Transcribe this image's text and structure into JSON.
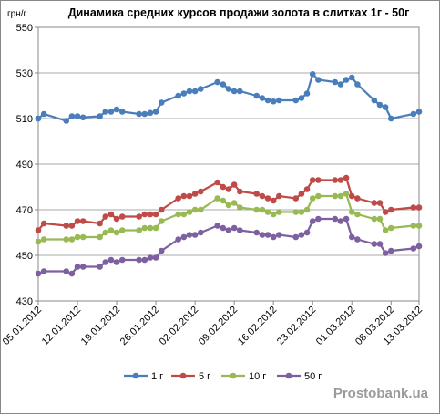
{
  "chart_data": {
    "type": "line",
    "title": "Динамика средних курсов продажи золота в слитках 1г - 50г",
    "y_label": "грн/г",
    "watermark": "Prostobank.ua",
    "x": [
      "05.01.2012",
      "06.01.2012",
      "10.01.2012",
      "11.01.2012",
      "12.01.2012",
      "13.01.2012",
      "16.01.2012",
      "17.01.2012",
      "18.01.2012",
      "19.01.2012",
      "20.01.2012",
      "23.01.2012",
      "24.01.2012",
      "25.01.2012",
      "26.01.2012",
      "27.01.2012",
      "30.01.2012",
      "31.01.2012",
      "01.02.2012",
      "02.02.2012",
      "03.02.2012",
      "06.02.2012",
      "07.02.2012",
      "08.02.2012",
      "09.02.2012",
      "10.02.2012",
      "13.02.2012",
      "14.02.2012",
      "15.02.2012",
      "16.02.2012",
      "17.02.2012",
      "20.02.2012",
      "21.02.2012",
      "22.02.2012",
      "23.02.2012",
      "24.02.2012",
      "27.02.2012",
      "28.02.2012",
      "29.02.2012",
      "01.03.2012",
      "02.03.2012",
      "05.03.2012",
      "06.03.2012",
      "07.03.2012",
      "08.03.2012",
      "12.03.2012",
      "13.03.2012"
    ],
    "series": [
      {
        "name": "1 г",
        "color": "#4a7ebb",
        "values": [
          510,
          512,
          509,
          511,
          511,
          510.5,
          511,
          513,
          513,
          514,
          513,
          512,
          512,
          512.5,
          513,
          517,
          520,
          521,
          522,
          522,
          523,
          526,
          525,
          523,
          522,
          522,
          520,
          519,
          518,
          517.5,
          518,
          518,
          519,
          521,
          529.5,
          527,
          526,
          525,
          527,
          528,
          525,
          518,
          516,
          515,
          510,
          512,
          513
        ]
      },
      {
        "name": "5 г",
        "color": "#be4b48",
        "values": [
          461,
          464,
          463,
          463,
          465,
          465,
          464,
          467,
          468,
          466,
          467,
          467,
          468,
          468,
          468,
          470,
          475,
          476,
          476,
          477,
          478,
          482,
          480,
          479,
          481,
          478,
          477,
          476,
          475,
          474,
          476,
          475,
          477,
          479,
          483,
          483,
          483,
          483,
          484,
          476,
          475,
          473,
          473,
          469,
          470,
          471,
          471
        ]
      },
      {
        "name": "10 г",
        "color": "#98b954",
        "values": [
          456,
          457,
          457,
          457,
          458,
          458,
          458,
          460,
          461,
          460,
          461,
          461,
          462,
          462,
          462,
          465,
          468,
          468,
          469,
          470,
          470,
          475,
          474,
          472,
          473,
          471,
          470,
          470,
          469,
          468,
          469,
          469,
          469,
          470,
          475,
          476,
          476,
          476,
          477,
          469,
          468,
          466,
          466,
          461,
          462,
          463,
          463
        ]
      },
      {
        "name": "50 г",
        "color": "#7d60a0",
        "values": [
          442,
          443,
          443,
          442,
          445,
          445,
          445,
          447,
          448,
          447,
          448,
          448,
          448,
          449,
          449,
          452,
          457,
          458,
          459,
          459,
          460,
          463,
          462,
          461,
          462,
          461,
          460,
          459,
          459,
          458,
          459,
          458,
          459,
          460,
          465,
          466,
          466,
          465,
          466,
          458,
          457,
          455,
          455,
          451,
          452,
          453,
          454
        ]
      }
    ],
    "xlim": [
      "05.01.2012",
      "13.03.2012"
    ],
    "xticks": [
      "05.01.2012",
      "12.01.2012",
      "19.01.2012",
      "26.01.2012",
      "02.02.2012",
      "09.02.2012",
      "16.02.2012",
      "23.02.2012",
      "01.03.2012",
      "08.03.2012",
      "13.03.2012"
    ],
    "ylim": [
      430,
      550
    ],
    "yticks": [
      430,
      450,
      470,
      490,
      510,
      530,
      550
    ],
    "grid": true,
    "legend": "bottom"
  }
}
